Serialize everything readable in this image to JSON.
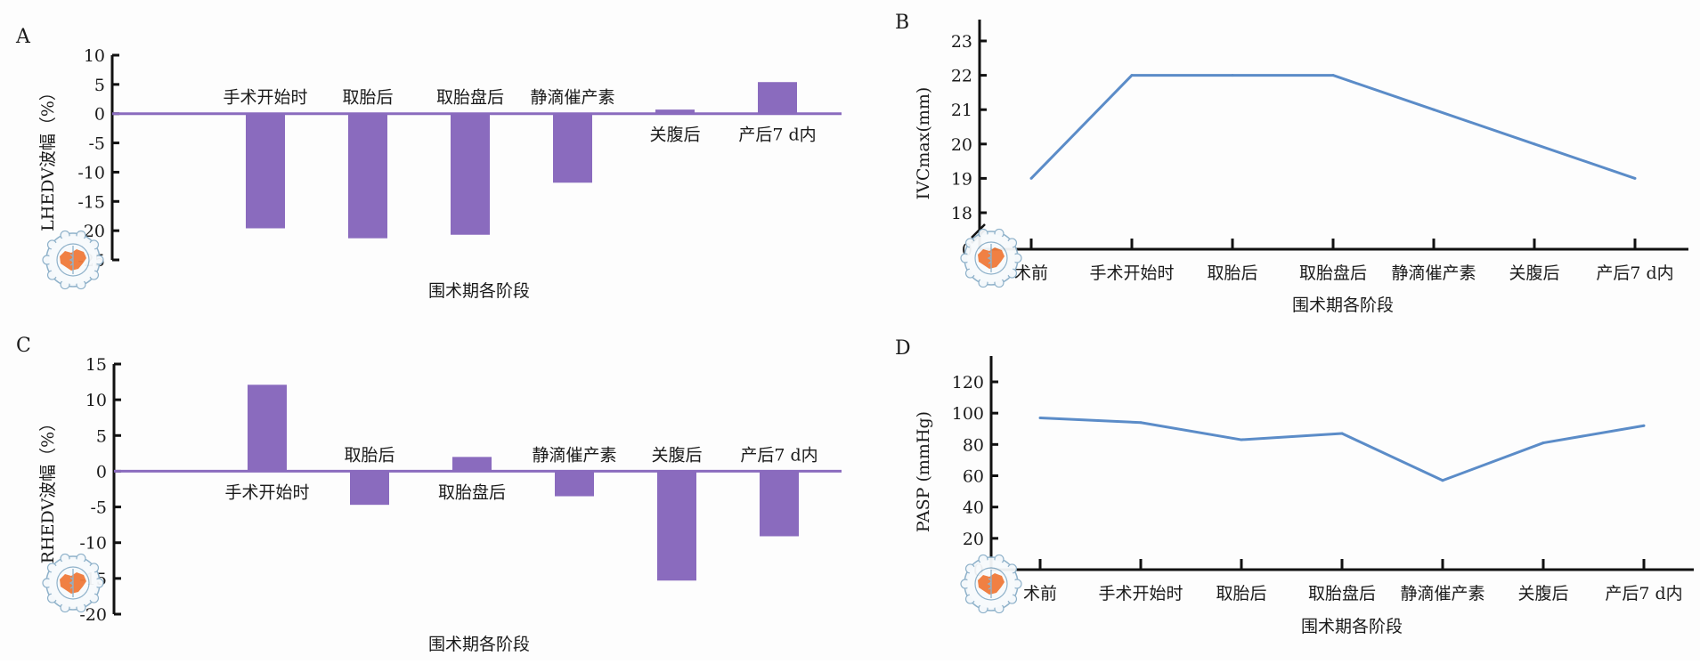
{
  "figure": {
    "colors": {
      "bar": "#8a6bbe",
      "bar_zero_line": "#8a6bbe",
      "line": "#5b8cc8",
      "axis": "#111111",
      "logo_orange": "#f07a3a",
      "logo_blue": "#8aaec8"
    },
    "watermark": "Chinese Medical Association emblem"
  },
  "chart_data": [
    {
      "panel": "A",
      "type": "bar",
      "title": "",
      "xlabel": "围术期各阶段",
      "ylabel": "LHEDV波幅（%）",
      "categories": [
        "手术开始时",
        "取胎后",
        "取胎盘后",
        "静滴催产素",
        "关腹后",
        "产后7 d内"
      ],
      "values": [
        -19.6,
        -21.3,
        -20.7,
        -11.8,
        0.7,
        5.4
      ],
      "ylim": [
        -25,
        10
      ],
      "yticks": [
        10,
        5,
        0,
        -5,
        -10,
        -15,
        -20,
        -25
      ],
      "ytick_labels": [
        "10",
        "5",
        "0",
        "-5",
        "-10",
        "-15",
        "-20",
        "-25"
      ],
      "label_placement": "category labels above the zero line for negative bars, below for positive bars",
      "grid": false
    },
    {
      "panel": "B",
      "type": "line",
      "title": "",
      "xlabel": "围术期各阶段",
      "ylabel": "IVCmax(mm)",
      "categories": [
        "术前",
        "手术开始时",
        "取胎后",
        "取胎盘后",
        "静滴催产素",
        "关腹后",
        "产后7 d内"
      ],
      "values": [
        19,
        22,
        22,
        22,
        21,
        20,
        19
      ],
      "ylim": [
        18,
        23
      ],
      "yticks": [
        23,
        22,
        21,
        20,
        19,
        18,
        0
      ],
      "ytick_labels": [
        "23",
        "22",
        "21",
        "20",
        "19",
        "18",
        "0"
      ],
      "axis_break": true,
      "grid": false
    },
    {
      "panel": "C",
      "type": "bar",
      "title": "",
      "xlabel": "围术期各阶段",
      "ylabel": "RHEDV波幅（%）",
      "categories": [
        "手术开始时",
        "取胎后",
        "取胎盘后",
        "静滴催产素",
        "关腹后",
        "产后7 d内"
      ],
      "values": [
        12.1,
        -4.7,
        2.0,
        -3.5,
        -15.3,
        -9.1
      ],
      "ylim": [
        -20,
        15
      ],
      "yticks": [
        15,
        10,
        5,
        0,
        -5,
        -10,
        -15,
        -20
      ],
      "ytick_labels": [
        "15",
        "10",
        "5",
        "0",
        "-5",
        "-10",
        "-15",
        "-20"
      ],
      "label_placement": "category labels above the zero line for negative bars, below for positive bars",
      "grid": false
    },
    {
      "panel": "D",
      "type": "line",
      "title": "",
      "xlabel": "围术期各阶段",
      "ylabel": "PASP (mmHg)",
      "categories": [
        "术前",
        "手术开始时",
        "取胎后",
        "取胎盘后",
        "静滴催产素",
        "关腹后",
        "产后7 d内"
      ],
      "values": [
        97,
        94,
        83,
        87,
        57,
        81,
        92
      ],
      "ylim": [
        0,
        120
      ],
      "yticks": [
        120,
        100,
        80,
        60,
        40,
        20,
        0
      ],
      "ytick_labels": [
        "120",
        "100",
        "80",
        "60",
        "40",
        "20",
        "0"
      ],
      "grid": false
    }
  ]
}
